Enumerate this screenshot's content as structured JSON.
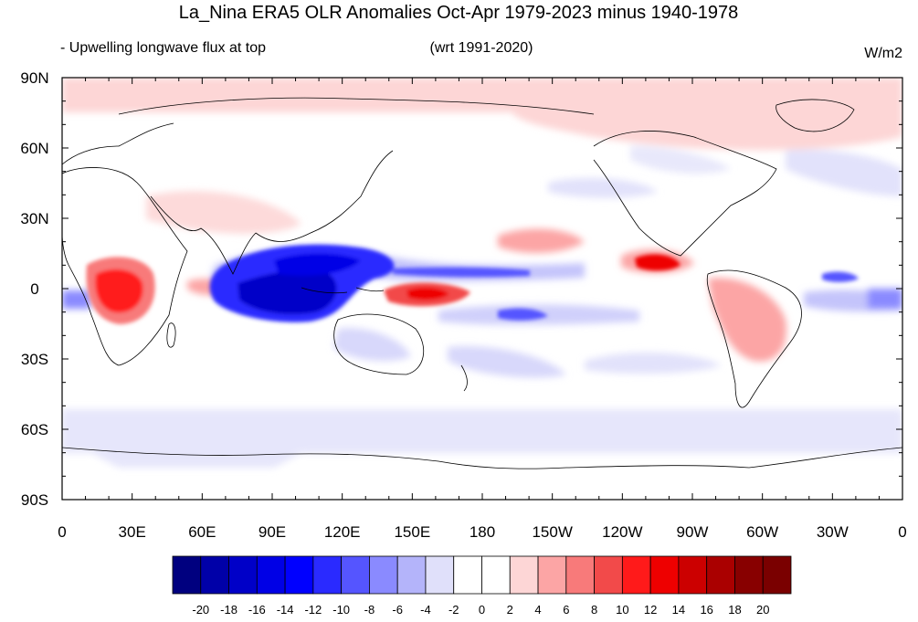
{
  "title": "La_Nina ERA5 OLR Anomalies Oct-Apr 1979-2023 minus 1940-1978",
  "subtitle_left": "- Upwelling longwave flux at top",
  "subtitle_center": "(wrt 1991-2020)",
  "units": "W/m2",
  "lat_labels": [
    "90N",
    "60N",
    "30N",
    "0",
    "30S",
    "60S",
    "90S"
  ],
  "lon_labels": [
    "0",
    "30E",
    "60E",
    "90E",
    "120E",
    "150E",
    "180",
    "150W",
    "120W",
    "90W",
    "60W",
    "30W",
    "0"
  ],
  "colorbar": {
    "labels": [
      "-20",
      "-18",
      "-16",
      "-14",
      "-12",
      "-10",
      "-8",
      "-6",
      "-4",
      "-2",
      "0",
      "2",
      "4",
      "6",
      "8",
      "10",
      "12",
      "14",
      "16",
      "18",
      "20"
    ],
    "colors": [
      "#00007f",
      "#0000a8",
      "#0000c8",
      "#0000e6",
      "#0000ff",
      "#2a2aff",
      "#5555ff",
      "#8a8aff",
      "#b4b4fa",
      "#e0e0fa",
      "#ffffff",
      "#ffffff",
      "#fdd6d6",
      "#fca5a5",
      "#f87a7a",
      "#f24a4a",
      "#ff1a1a",
      "#ee0000",
      "#cc0000",
      "#aa0000",
      "#880000",
      "#7a0000"
    ]
  },
  "map_extent": {
    "lon": [
      0,
      360
    ],
    "lat": [
      -90,
      90
    ]
  },
  "anomaly_features": [
    {
      "name": "arctic-warm-band",
      "lon": [
        0,
        360
      ],
      "lat": [
        60,
        90
      ],
      "value": 3
    },
    {
      "name": "southern-ocean-cool-band",
      "lon": [
        0,
        360
      ],
      "lat": [
        -72,
        -52
      ],
      "value": -3
    },
    {
      "name": "central-africa-warm",
      "lon": [
        22,
        15
      ],
      "lat": [
        1,
        10
      ],
      "value": 12
    },
    {
      "name": "maritime-continent-cool",
      "lon": [
        100,
        25
      ],
      "lat": [
        0,
        10
      ],
      "value": -14
    },
    {
      "name": "indian-ocean-cool",
      "lon": [
        85,
        15
      ],
      "lat": [
        -6,
        6
      ],
      "value": -12
    },
    {
      "name": "west-pacific-warm",
      "lon": [
        157,
        10
      ],
      "lat": [
        -3,
        4
      ],
      "value": 12
    },
    {
      "name": "east-pacific-warm",
      "lon": [
        253,
        7
      ],
      "lat": [
        12,
        4
      ],
      "value": 9
    },
    {
      "name": "south-america-warm",
      "lon": [
        305,
        12
      ],
      "lat": [
        -15,
        12
      ],
      "value": 6
    },
    {
      "name": "atlantic-itcz-cool",
      "lon": [
        335,
        8
      ],
      "lat": [
        5,
        3
      ],
      "value": -8
    },
    {
      "name": "pacific-itcz-cool",
      "lon": [
        190,
        35
      ],
      "lat": [
        7,
        3
      ],
      "value": -6
    },
    {
      "name": "spcz-cool",
      "lon": [
        200,
        25
      ],
      "lat": [
        -12,
        4
      ],
      "value": -5
    },
    {
      "name": "north-pacific-warm",
      "lon": [
        205,
        12
      ],
      "lat": [
        20,
        5
      ],
      "value": 4
    }
  ]
}
